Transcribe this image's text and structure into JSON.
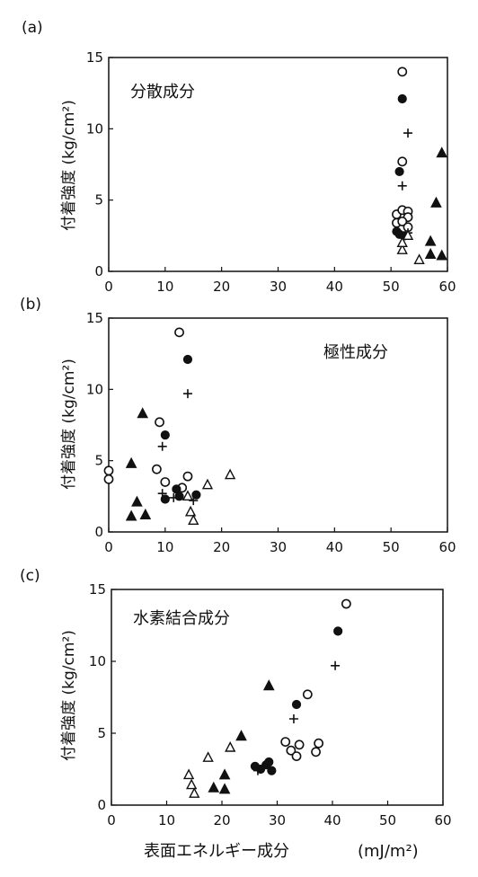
{
  "xlabel": "表面エネルギー成分",
  "xlabel_unit": "(mJ/m²)",
  "chart_data": [
    {
      "type": "scatter",
      "panel_label": "(a)",
      "annotation": "分散成分",
      "ylabel": "付着強度 (kg/cm²)",
      "xlim": [
        0,
        60
      ],
      "ylim": [
        0,
        15
      ],
      "xticks": [
        0,
        10,
        20,
        30,
        40,
        50,
        60
      ],
      "yticks": [
        0,
        5,
        10,
        15
      ],
      "series": [
        {
          "marker": "open-circle",
          "points": [
            [
              52,
              14.0
            ],
            [
              52,
              7.7
            ],
            [
              51,
              4.0
            ],
            [
              52,
              4.3
            ],
            [
              53,
              4.2
            ],
            [
              53,
              3.8
            ],
            [
              51,
              3.4
            ],
            [
              52,
              3.5
            ],
            [
              53,
              3.1
            ]
          ]
        },
        {
          "marker": "filled-circle",
          "points": [
            [
              52,
              12.1
            ],
            [
              51.5,
              7.0
            ],
            [
              51,
              2.8
            ],
            [
              51.5,
              2.6
            ],
            [
              52.3,
              2.5
            ]
          ]
        },
        {
          "marker": "plus",
          "points": [
            [
              53,
              9.7
            ],
            [
              52,
              6.0
            ],
            [
              52.5,
              2.5
            ],
            [
              53,
              2.7
            ]
          ]
        },
        {
          "marker": "open-triangle",
          "points": [
            [
              52,
              1.5
            ],
            [
              53,
              2.5
            ],
            [
              52,
              2.0
            ],
            [
              55,
              0.8
            ]
          ]
        },
        {
          "marker": "filled-triangle",
          "points": [
            [
              59,
              8.3
            ],
            [
              58,
              4.8
            ],
            [
              57,
              2.1
            ],
            [
              57,
              1.2
            ],
            [
              59,
              1.1
            ]
          ]
        }
      ]
    },
    {
      "type": "scatter",
      "panel_label": "(b)",
      "annotation": "極性成分",
      "ylabel": "付着強度 (kg/cm²)",
      "xlim": [
        0,
        60
      ],
      "ylim": [
        0,
        15
      ],
      "xticks": [
        0,
        10,
        20,
        30,
        40,
        50,
        60
      ],
      "yticks": [
        0,
        5,
        10,
        15
      ],
      "series": [
        {
          "marker": "open-circle",
          "points": [
            [
              12.5,
              14.0
            ],
            [
              9,
              7.7
            ],
            [
              0,
              4.3
            ],
            [
              0,
              3.7
            ],
            [
              8.5,
              4.4
            ],
            [
              14,
              3.9
            ],
            [
              10,
              3.5
            ],
            [
              13,
              3.1
            ]
          ]
        },
        {
          "marker": "filled-circle",
          "points": [
            [
              14,
              12.1
            ],
            [
              10,
              6.8
            ],
            [
              12,
              3.0
            ],
            [
              12.5,
              2.5
            ],
            [
              15.5,
              2.6
            ],
            [
              10,
              2.3
            ]
          ]
        },
        {
          "marker": "plus",
          "points": [
            [
              14,
              9.7
            ],
            [
              9.5,
              6.0
            ],
            [
              9.5,
              2.7
            ],
            [
              11.5,
              2.4
            ],
            [
              15,
              2.2
            ]
          ]
        },
        {
          "marker": "open-triangle",
          "points": [
            [
              21.5,
              4.0
            ],
            [
              17.5,
              3.3
            ],
            [
              14,
              2.5
            ],
            [
              14.5,
              1.4
            ],
            [
              15,
              0.8
            ]
          ]
        },
        {
          "marker": "filled-triangle",
          "points": [
            [
              6,
              8.3
            ],
            [
              4,
              4.8
            ],
            [
              5,
              2.1
            ],
            [
              6.5,
              1.2
            ],
            [
              4,
              1.1
            ]
          ]
        }
      ]
    },
    {
      "type": "scatter",
      "panel_label": "(c)",
      "annotation": "水素結合成分",
      "ylabel": "付着強度 (kg/cm²)",
      "xlim": [
        0,
        60
      ],
      "ylim": [
        0,
        15
      ],
      "xticks": [
        0,
        10,
        20,
        30,
        40,
        50,
        60
      ],
      "yticks": [
        0,
        5,
        10,
        15
      ],
      "series": [
        {
          "marker": "open-circle",
          "points": [
            [
              42.5,
              14.0
            ],
            [
              35.5,
              7.7
            ],
            [
              31.5,
              4.4
            ],
            [
              32.5,
              3.8
            ],
            [
              34,
              4.2
            ],
            [
              37.5,
              4.3
            ],
            [
              33.5,
              3.4
            ],
            [
              37,
              3.7
            ]
          ]
        },
        {
          "marker": "filled-circle",
          "points": [
            [
              41,
              12.1
            ],
            [
              33.5,
              7.0
            ],
            [
              26,
              2.7
            ],
            [
              27,
              2.5
            ],
            [
              28,
              2.8
            ],
            [
              28.5,
              3.0
            ],
            [
              29,
              2.4
            ]
          ]
        },
        {
          "marker": "plus",
          "points": [
            [
              40.5,
              9.7
            ],
            [
              33,
              6.0
            ],
            [
              27.5,
              2.6
            ],
            [
              26.5,
              2.4
            ]
          ]
        },
        {
          "marker": "open-triangle",
          "points": [
            [
              21.5,
              4.0
            ],
            [
              17.5,
              3.3
            ],
            [
              14,
              2.1
            ],
            [
              14.5,
              1.4
            ],
            [
              15,
              0.8
            ]
          ]
        },
        {
          "marker": "filled-triangle",
          "points": [
            [
              28.5,
              8.3
            ],
            [
              23.5,
              4.8
            ],
            [
              20.5,
              2.1
            ],
            [
              18.5,
              1.2
            ],
            [
              20.5,
              1.1
            ]
          ]
        }
      ]
    }
  ]
}
